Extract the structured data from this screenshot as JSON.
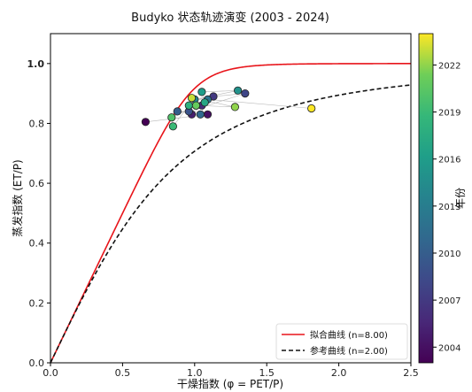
{
  "chart_data": {
    "type": "scatter",
    "title": "Budyko 状态轨迹演变 (2003 - 2024)",
    "xlabel": "干燥指数 (φ = PET/P)",
    "ylabel": "蒸发指数 (ET/P)",
    "xlim": [
      0,
      2.5
    ],
    "ylim": [
      0,
      1.1
    ],
    "x_ticks": [
      "0.0",
      "0.5",
      "1.0",
      "1.5",
      "2.0",
      "2.5"
    ],
    "y_ticks": [
      "0.0",
      "0.2",
      "0.4",
      "0.6",
      "0.8",
      "1.0"
    ],
    "grid": false,
    "legend_position": "bottom-right",
    "curves": [
      {
        "name": "拟合曲线 (n=8.00)",
        "n": 8.0,
        "color": "#e8141a",
        "style": "solid"
      },
      {
        "name": "参考曲线 (n=2.00)",
        "n": 2.0,
        "color": "#111111",
        "style": "dashed"
      }
    ],
    "colorbar": {
      "label": "年份",
      "min": 2003,
      "max": 2024,
      "ticks": [
        "2004",
        "2007",
        "2010",
        "2013",
        "2016",
        "2019",
        "2022"
      ]
    },
    "points": [
      {
        "year": 2003,
        "x": 0.66,
        "y": 0.805
      },
      {
        "year": 2004,
        "x": 1.09,
        "y": 0.83
      },
      {
        "year": 2005,
        "x": 0.98,
        "y": 0.83
      },
      {
        "year": 2006,
        "x": 1.05,
        "y": 0.86
      },
      {
        "year": 2007,
        "x": 1.13,
        "y": 0.89
      },
      {
        "year": 2008,
        "x": 1.35,
        "y": 0.9
      },
      {
        "year": 2009,
        "x": 0.96,
        "y": 0.84
      },
      {
        "year": 2010,
        "x": 0.88,
        "y": 0.84
      },
      {
        "year": 2011,
        "x": 1.04,
        "y": 0.83
      },
      {
        "year": 2012,
        "x": 1.09,
        "y": 0.88
      },
      {
        "year": 2013,
        "x": 1.01,
        "y": 0.86
      },
      {
        "year": 2014,
        "x": 1.0,
        "y": 0.88
      },
      {
        "year": 2015,
        "x": 1.3,
        "y": 0.91
      },
      {
        "year": 2016,
        "x": 1.05,
        "y": 0.905
      },
      {
        "year": 2017,
        "x": 1.07,
        "y": 0.87
      },
      {
        "year": 2018,
        "x": 0.96,
        "y": 0.86
      },
      {
        "year": 2019,
        "x": 0.85,
        "y": 0.79
      },
      {
        "year": 2020,
        "x": 0.84,
        "y": 0.82
      },
      {
        "year": 2021,
        "x": 1.01,
        "y": 0.86
      },
      {
        "year": 2022,
        "x": 1.28,
        "y": 0.855
      },
      {
        "year": 2023,
        "x": 0.98,
        "y": 0.885
      },
      {
        "year": 2024,
        "x": 1.81,
        "y": 0.85
      }
    ]
  }
}
